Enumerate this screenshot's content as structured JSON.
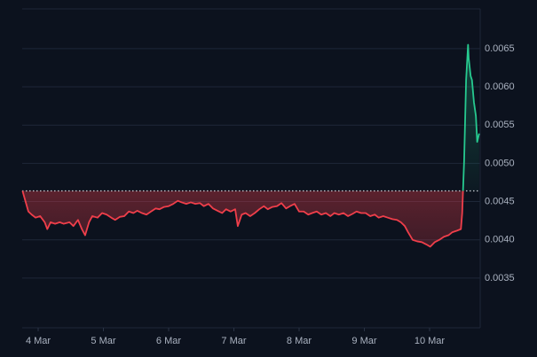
{
  "chart_data": {
    "type": "baseline",
    "x": [
      3.76,
      3.8,
      3.85,
      3.9,
      3.96,
      4.03,
      4.1,
      4.14,
      4.19,
      4.26,
      4.33,
      4.39,
      4.48,
      4.54,
      4.61,
      4.67,
      4.72,
      4.78,
      4.83,
      4.91,
      4.98,
      5.05,
      5.12,
      5.18,
      5.25,
      5.32,
      5.39,
      5.46,
      5.52,
      5.59,
      5.66,
      5.73,
      5.8,
      5.86,
      5.93,
      6.0,
      6.07,
      6.14,
      6.2,
      6.27,
      6.34,
      6.41,
      6.48,
      6.54,
      6.61,
      6.68,
      6.75,
      6.82,
      6.88,
      6.95,
      7.02,
      7.06,
      7.12,
      7.18,
      7.25,
      7.32,
      7.39,
      7.46,
      7.52,
      7.59,
      7.66,
      7.73,
      7.8,
      7.86,
      7.93,
      8.0,
      8.07,
      8.14,
      8.2,
      8.27,
      8.34,
      8.41,
      8.48,
      8.54,
      8.61,
      8.68,
      8.75,
      8.82,
      8.88,
      8.95,
      9.02,
      9.09,
      9.16,
      9.22,
      9.29,
      9.36,
      9.43,
      9.5,
      9.56,
      9.62,
      9.67,
      9.74,
      9.81,
      9.88,
      9.95,
      10.01,
      10.08,
      10.15,
      10.22,
      10.29,
      10.35,
      10.42,
      10.48,
      10.5,
      10.53,
      10.56,
      10.59,
      10.6,
      10.63,
      10.65,
      10.68,
      10.71,
      10.73,
      10.76
    ],
    "values": [
      0.00464,
      0.00452,
      0.00437,
      0.00433,
      0.00429,
      0.00431,
      0.00423,
      0.00414,
      0.00423,
      0.00421,
      0.00423,
      0.00421,
      0.00423,
      0.00418,
      0.00426,
      0.00414,
      0.00406,
      0.00423,
      0.00431,
      0.00429,
      0.00435,
      0.00433,
      0.00429,
      0.00426,
      0.0043,
      0.00431,
      0.00437,
      0.00435,
      0.00438,
      0.00435,
      0.00433,
      0.00437,
      0.00441,
      0.0044,
      0.00443,
      0.00444,
      0.00447,
      0.00451,
      0.00449,
      0.00447,
      0.00449,
      0.00447,
      0.00448,
      0.00444,
      0.00447,
      0.00441,
      0.00438,
      0.00435,
      0.0044,
      0.00437,
      0.0044,
      0.00418,
      0.00433,
      0.00435,
      0.00431,
      0.00435,
      0.0044,
      0.00444,
      0.0044,
      0.00443,
      0.00444,
      0.00448,
      0.00441,
      0.00444,
      0.00447,
      0.00437,
      0.00437,
      0.00433,
      0.00435,
      0.00437,
      0.00433,
      0.00435,
      0.00431,
      0.00435,
      0.00433,
      0.00435,
      0.00431,
      0.00434,
      0.00437,
      0.00435,
      0.00435,
      0.00431,
      0.00433,
      0.00429,
      0.00431,
      0.00429,
      0.00427,
      0.00426,
      0.00423,
      0.00418,
      0.0041,
      0.004,
      0.00398,
      0.00397,
      0.00394,
      0.00391,
      0.00397,
      0.004,
      0.00404,
      0.00406,
      0.0041,
      0.00412,
      0.00414,
      0.00435,
      0.00504,
      0.00609,
      0.00655,
      0.00637,
      0.00614,
      0.00609,
      0.0058,
      0.00562,
      0.00528,
      0.00539
    ],
    "baseline": 0.00464,
    "up_color": "#26c98f",
    "down_color": "#ef3e4a",
    "xlim": [
      3.755,
      10.776
    ],
    "xticks": [
      {
        "value": 4,
        "label": "4 Mar"
      },
      {
        "value": 5,
        "label": "5 Mar"
      },
      {
        "value": 6,
        "label": "6 Mar"
      },
      {
        "value": 7,
        "label": "7 Mar"
      },
      {
        "value": 8,
        "label": "8 Mar"
      },
      {
        "value": 9,
        "label": "9 Mar"
      },
      {
        "value": 10,
        "label": "10 Mar"
      }
    ],
    "ylim": [
      0.00285,
      0.00702
    ],
    "yticks": [
      0.0065,
      {
        "value": 0.006,
        "label": "0.0060"
      },
      0.0055,
      {
        "value": 0.005,
        "label": "0.0050"
      },
      0.0045,
      {
        "value": 0.004,
        "label": "0.0040"
      },
      0.0035
    ],
    "grid": true
  }
}
